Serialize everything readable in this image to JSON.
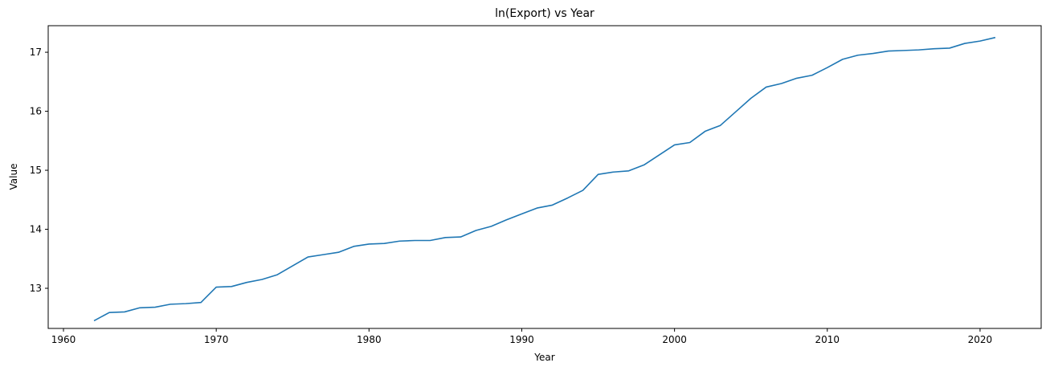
{
  "chart_data": {
    "type": "line",
    "title": "ln(Export) vs Year",
    "xlabel": "Year",
    "ylabel": "Value",
    "xlim": [
      1959,
      2024
    ],
    "ylim": [
      12.32,
      17.45
    ],
    "xticks": [
      1960,
      1970,
      1980,
      1990,
      2000,
      2010,
      2020
    ],
    "yticks": [
      13,
      14,
      15,
      16,
      17
    ],
    "grid": false,
    "line_color": "#1f77b4",
    "series": [
      {
        "x": [
          1962,
          1963,
          1964,
          1965,
          1966,
          1967,
          1968,
          1969,
          1970,
          1971,
          1972,
          1973,
          1974,
          1975,
          1976,
          1977,
          1978,
          1979,
          1980,
          1981,
          1982,
          1983,
          1984,
          1985,
          1986,
          1987,
          1988,
          1989,
          1990,
          1991,
          1992,
          1993,
          1994,
          1995,
          1996,
          1997,
          1998,
          1999,
          2000,
          2001,
          2002,
          2003,
          2004,
          2005,
          2006,
          2007,
          2008,
          2009,
          2010,
          2011,
          2012,
          2013,
          2014,
          2015,
          2016,
          2017,
          2018,
          2019,
          2020,
          2021
        ],
        "values": [
          12.45,
          12.59,
          12.6,
          12.67,
          12.68,
          12.73,
          12.74,
          12.76,
          13.02,
          13.03,
          13.1,
          13.15,
          13.23,
          13.38,
          13.53,
          13.57,
          13.61,
          13.71,
          13.75,
          13.76,
          13.8,
          13.81,
          13.81,
          13.86,
          13.87,
          13.98,
          14.05,
          14.16,
          14.26,
          14.36,
          14.41,
          14.53,
          14.66,
          14.93,
          14.97,
          14.99,
          15.09,
          15.26,
          15.43,
          15.47,
          15.66,
          15.76,
          15.99,
          16.22,
          16.41,
          16.47,
          16.56,
          16.61,
          16.74,
          16.88,
          16.95,
          16.98,
          17.02,
          17.03,
          17.04,
          17.06,
          17.07,
          17.15,
          17.19,
          17.25
        ]
      }
    ]
  }
}
